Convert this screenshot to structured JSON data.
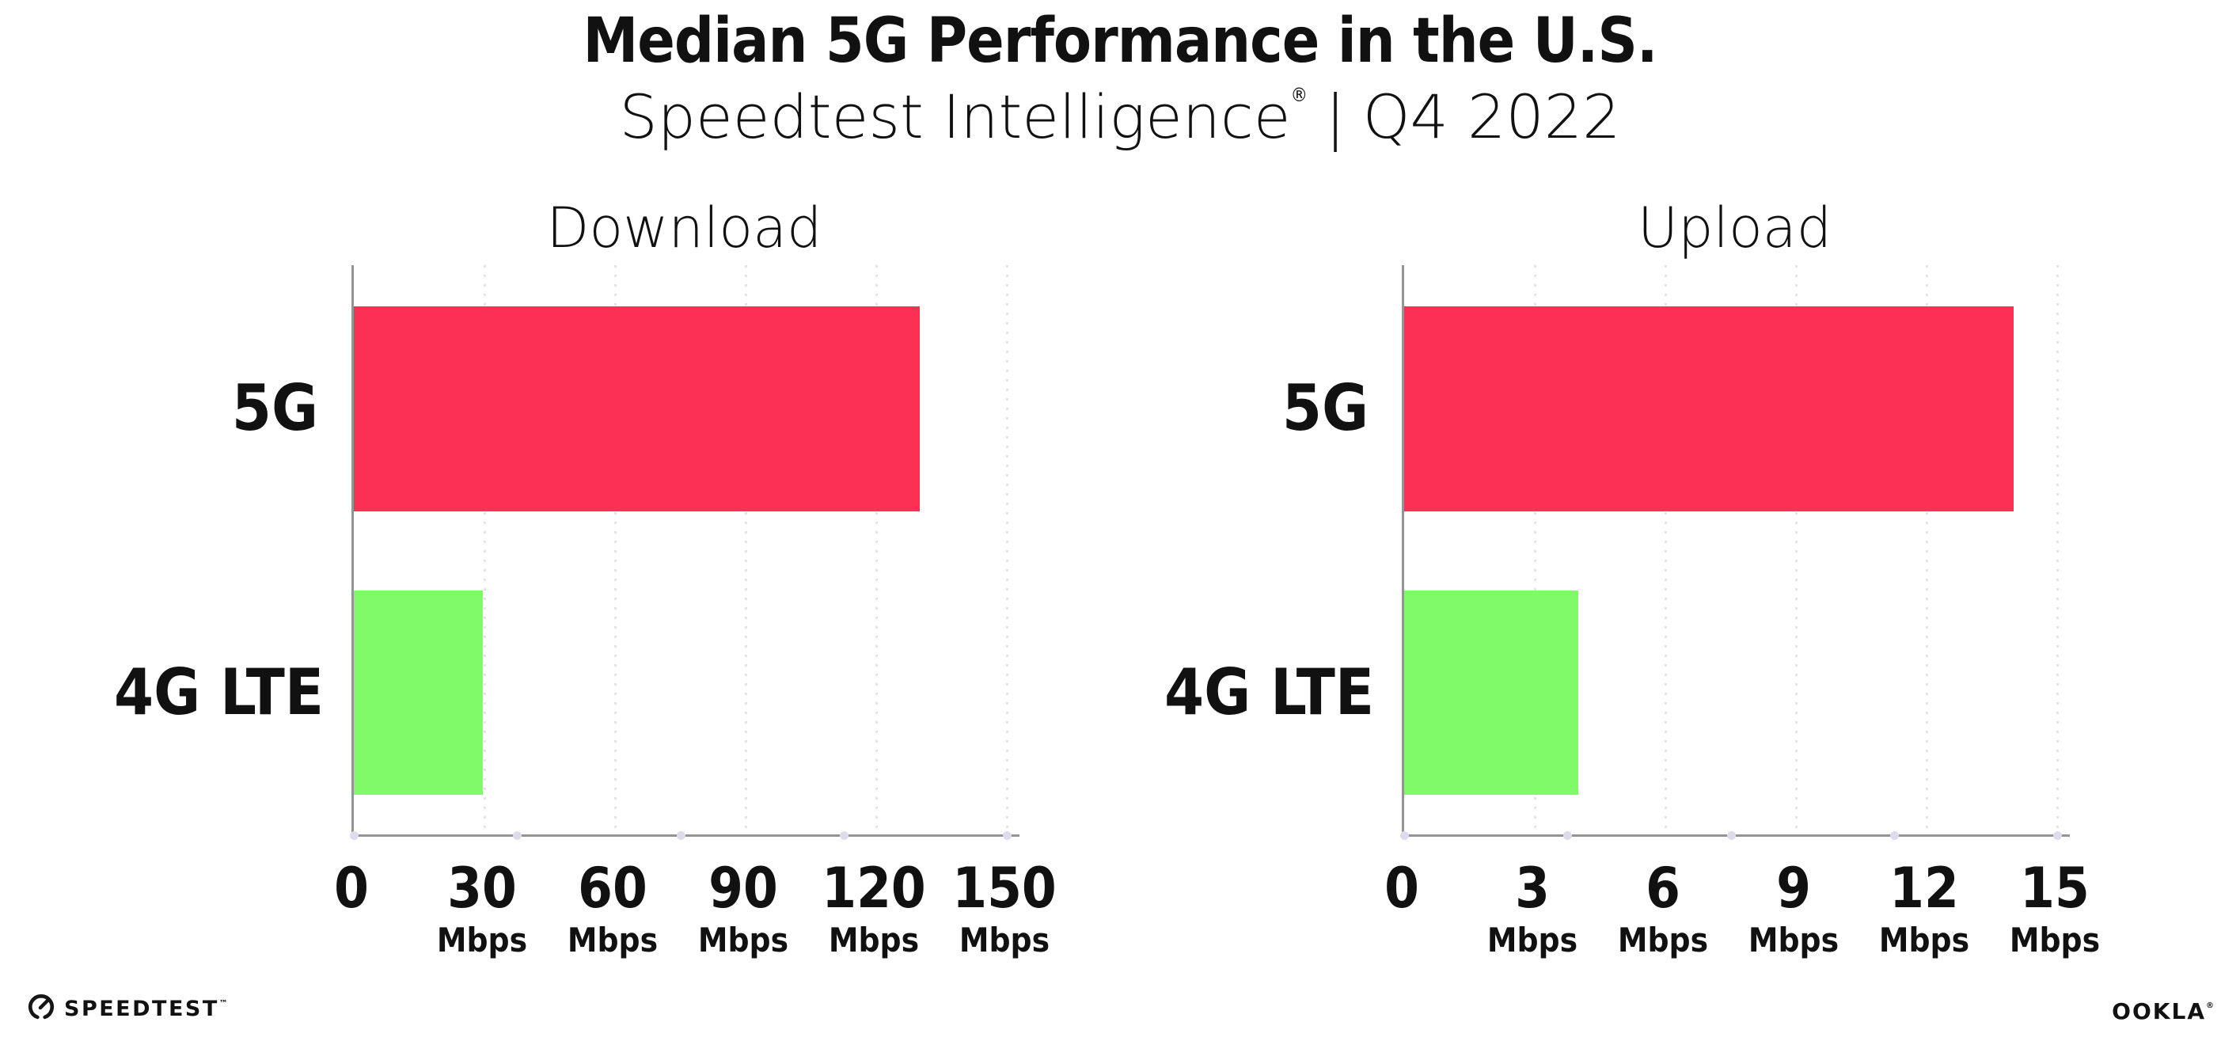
{
  "header": {
    "title": "Median 5G Performance in the U.S.",
    "subtitle": {
      "brand": "Speedtest Intelligence",
      "registered": "®",
      "separator": "|",
      "period": "Q4 2022"
    }
  },
  "footer": {
    "speedtest_wordmark": "SPEEDTEST",
    "speedtest_trademark": "™",
    "ookla_wordmark": "OOKLA",
    "ookla_registered": "®"
  },
  "colors": {
    "bar_5g": "#FC3055",
    "bar_4g_lte": "#80FA68",
    "gridline": "#E3E3EE",
    "axis": "#949494",
    "axis_quarter_dot": "#DCDCEA",
    "text": "#111111",
    "background": "#FFFFFF"
  },
  "chart_data": [
    {
      "type": "bar",
      "orientation": "horizontal",
      "title": "Download",
      "categories": [
        "5G",
        "4G LTE"
      ],
      "values": [
        130,
        29.7
      ],
      "value_unit": "Mbps",
      "xlabel": "",
      "ylabel": "",
      "xlim": [
        0,
        153
      ],
      "xticks": [
        0,
        30,
        60,
        90,
        120,
        150
      ],
      "xtick_unit": "Mbps",
      "unit_shown_on_zero_tick": false,
      "grid": "dotted-vertical-major",
      "legend": "none",
      "bar_colors": [
        "#FC3055",
        "#80FA68"
      ]
    },
    {
      "type": "bar",
      "orientation": "horizontal",
      "title": "Upload",
      "categories": [
        "5G",
        "4G LTE"
      ],
      "values": [
        14,
        4
      ],
      "value_unit": "Mbps",
      "xlabel": "",
      "ylabel": "",
      "xlim": [
        0,
        15.3
      ],
      "xticks": [
        0,
        3,
        6,
        9,
        12,
        15
      ],
      "xtick_unit": "Mbps",
      "unit_shown_on_zero_tick": false,
      "grid": "dotted-vertical-major",
      "legend": "none",
      "bar_colors": [
        "#FC3055",
        "#80FA68"
      ]
    }
  ]
}
